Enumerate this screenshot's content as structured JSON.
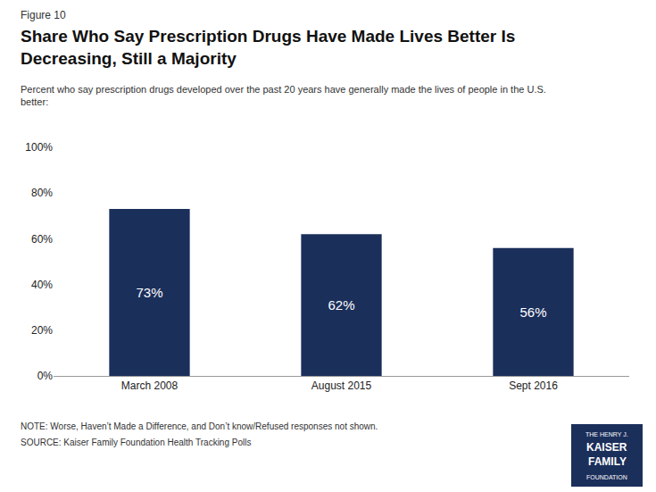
{
  "chart_data": {
    "type": "bar",
    "figure_label": "Figure 10",
    "title": "Share Who Say Prescription Drugs Have Made Lives Better Is\nDecreasing, Still a Majority",
    "subtitle": "Percent who say prescription drugs developed over the past 20 years have generally made the lives of people in the U.S.\nbetter:",
    "categories": [
      "March 2008",
      "August 2015",
      "Sept 2016"
    ],
    "values": [
      73,
      62,
      56
    ],
    "value_labels": [
      "73%",
      "62%",
      "56%"
    ],
    "data_labels": true,
    "color": "#1b2f5b",
    "ylim": [
      0,
      100
    ],
    "yticks": [
      {
        "value": 0,
        "label": "0%"
      },
      {
        "value": 20,
        "label": "20%"
      },
      {
        "value": 40,
        "label": "40%"
      },
      {
        "value": 60,
        "label": "60%"
      },
      {
        "value": 80,
        "label": "80%"
      },
      {
        "value": 100,
        "label": "100%"
      }
    ],
    "grid": false,
    "notes": [
      "NOTE: Worse, Haven’t Made a Difference, and Don’t know/Refused responses not shown.",
      "SOURCE: Kaiser Family Foundation Health Tracking Polls"
    ],
    "logo_text": [
      "THE HENRY J.",
      "KAISER",
      "FAMILY",
      "FOUNDATION"
    ]
  }
}
